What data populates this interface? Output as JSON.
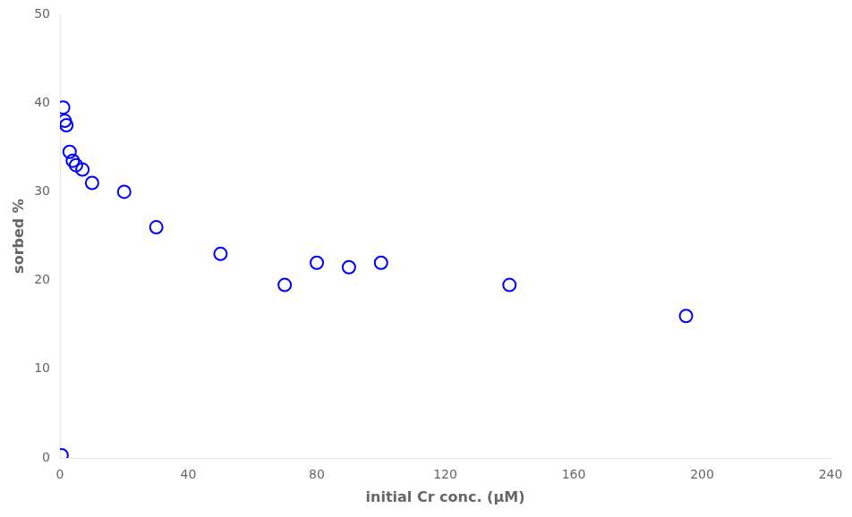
{
  "chart_data": {
    "type": "scatter",
    "x": [
      0.5,
      1.0,
      1.5,
      2.0,
      3.0,
      4.0,
      5.0,
      7.0,
      10.0,
      20.0,
      30.0,
      50.0,
      70.0,
      80.0,
      90.0,
      100.0,
      140.0,
      195.0
    ],
    "values": [
      0.3,
      39.5,
      38.0,
      37.5,
      34.5,
      33.5,
      33.0,
      32.5,
      31.0,
      30.0,
      26.0,
      23.0,
      19.5,
      22.0,
      21.5,
      22.0,
      19.5,
      16.0
    ],
    "color": "#0000ff",
    "marker": "circle",
    "xlabel": "initial Cr conc. (μM)",
    "ylabel": "sorbed %",
    "xlim": [
      0,
      240
    ],
    "ylim": [
      0,
      50
    ],
    "xticks": [
      0,
      40,
      80,
      120,
      160,
      200,
      240
    ],
    "yticks": [
      0,
      10,
      20,
      30,
      40,
      50
    ],
    "grid": false
  }
}
